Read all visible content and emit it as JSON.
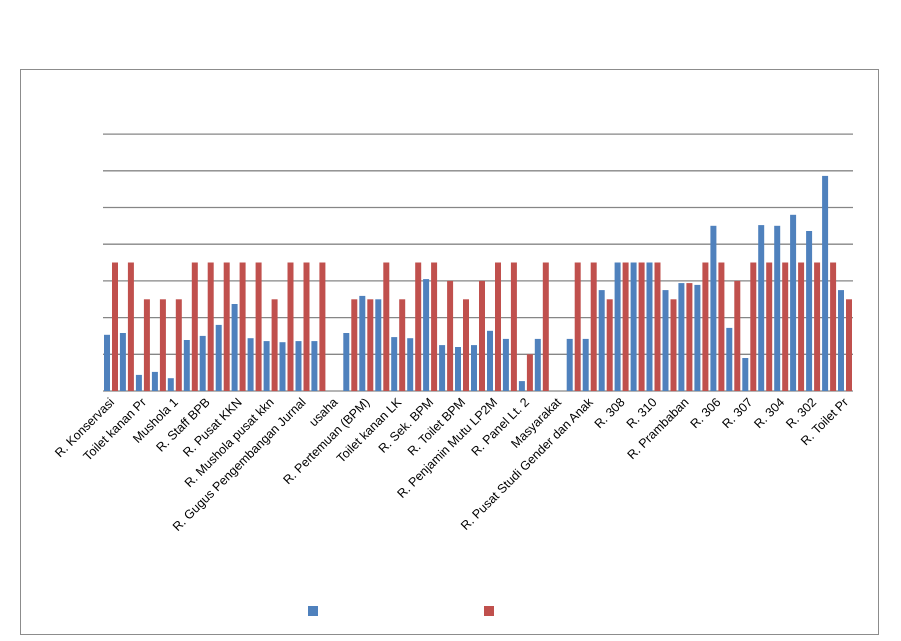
{
  "chart_data": {
    "type": "bar",
    "title": "",
    "xlabel": "",
    "ylabel": "",
    "ylim": [
      0,
      7
    ],
    "ytick_step": 1,
    "y_tick_labels_visible": false,
    "grid": true,
    "legend_position": "bottom",
    "label_every": 2,
    "categories": [
      "R. Konservasi",
      "",
      "Toilet kanan Pr",
      "",
      "Mushola 1",
      "",
      "R. Staff BPB",
      "",
      "R. Pusat KKN",
      "",
      "R. Mushola pusat kkn",
      "",
      "R. Gugus Pengembangan Jurnal",
      "",
      "usaha",
      "",
      "R. Pertemuan (BPM)",
      "",
      "Toilet kanan LK",
      "",
      "R. Sek. BPM",
      "",
      "R. Toilet BPM",
      "",
      "R. Penjamin Mutu LP2M",
      "",
      "R. Panel Lt. 2",
      "",
      "Masyarakat",
      "",
      "R. Pusat Studi Gender dan Anak",
      "",
      "R. 308",
      "",
      "R. 310",
      "",
      "R. Prambaban",
      "",
      "R. 306",
      "",
      "R. 307",
      "",
      "R. 304",
      "",
      "R. 302",
      "",
      "R. Toilet Pr"
    ],
    "series": [
      {
        "name": "",
        "color": "#4f81bd",
        "values": [
          1.53,
          1.58,
          0.44,
          0.52,
          0.35,
          1.39,
          1.5,
          1.8,
          2.37,
          1.44,
          1.36,
          1.33,
          1.36,
          1.36,
          null,
          1.58,
          2.59,
          2.5,
          1.47,
          1.44,
          3.05,
          1.25,
          1.2,
          1.25,
          1.64,
          1.42,
          0.27,
          1.42,
          null,
          1.42,
          1.42,
          2.75,
          3.5,
          3.5,
          3.5,
          2.75,
          2.94,
          2.89,
          4.5,
          1.72,
          0.9,
          4.52,
          4.5,
          4.8,
          4.36,
          5.86,
          2.75
        ]
      },
      {
        "name": "",
        "color": "#c0504d",
        "values": [
          3.5,
          3.5,
          2.5,
          2.5,
          2.5,
          3.5,
          3.5,
          3.5,
          3.5,
          3.5,
          2.5,
          3.5,
          3.5,
          3.5,
          null,
          2.5,
          2.5,
          3.5,
          2.5,
          3.5,
          3.5,
          3.0,
          2.5,
          3.0,
          3.5,
          3.5,
          1.0,
          3.5,
          null,
          3.5,
          3.5,
          2.5,
          3.5,
          3.5,
          3.5,
          2.5,
          2.94,
          3.5,
          3.5,
          3.0,
          3.5,
          3.5,
          3.5,
          3.5,
          3.5,
          3.5,
          2.5
        ]
      }
    ]
  }
}
